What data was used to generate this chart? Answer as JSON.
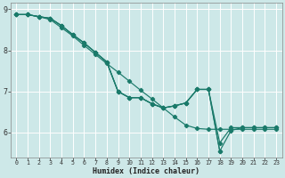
{
  "xlabel": "Humidex (Indice chaleur)",
  "bg_color": "#cde8e8",
  "line_color": "#1a7a6a",
  "xlim": [
    -0.5,
    23.5
  ],
  "ylim": [
    5.4,
    9.15
  ],
  "yticks": [
    6,
    7,
    8,
    9
  ],
  "xticks": [
    0,
    1,
    2,
    3,
    4,
    5,
    6,
    7,
    8,
    9,
    10,
    11,
    12,
    13,
    14,
    15,
    16,
    17,
    18,
    19,
    20,
    21,
    22,
    23
  ],
  "series1_x": [
    0,
    1,
    2,
    3,
    4,
    5,
    6,
    7,
    8,
    9,
    10,
    11,
    12,
    13,
    14,
    15,
    16,
    17,
    18,
    19,
    20,
    21,
    22,
    23
  ],
  "series1_y": [
    8.87,
    8.87,
    8.82,
    8.75,
    8.55,
    8.35,
    8.12,
    7.9,
    7.68,
    7.47,
    7.25,
    7.03,
    6.82,
    6.6,
    6.38,
    6.18,
    6.1,
    6.08,
    6.08,
    6.08,
    6.08,
    6.08,
    6.08,
    6.08
  ],
  "series2_x": [
    0,
    1,
    2,
    3,
    3,
    4,
    5,
    6,
    7,
    8,
    9,
    10,
    11,
    12,
    13,
    14,
    15,
    16,
    17,
    18,
    19,
    20,
    21,
    22,
    23
  ],
  "series2_y": [
    8.87,
    8.87,
    8.82,
    8.78,
    8.78,
    8.6,
    8.38,
    8.18,
    7.95,
    7.72,
    7.0,
    6.85,
    6.85,
    6.7,
    6.6,
    6.65,
    6.72,
    7.05,
    7.05,
    5.55,
    6.05,
    6.12,
    6.12,
    6.12,
    6.12
  ],
  "series3_x": [
    0,
    1,
    2,
    3,
    4,
    5,
    6,
    7,
    8,
    9,
    10,
    11,
    12,
    13,
    14,
    15,
    16,
    17,
    18
  ],
  "series3_y": [
    8.87,
    8.87,
    8.82,
    8.78,
    8.6,
    8.38,
    8.18,
    7.95,
    7.72,
    7.0,
    6.85,
    6.85,
    6.7,
    6.6,
    6.65,
    6.72,
    7.05,
    7.05,
    5.55
  ],
  "series4_x": [
    0,
    1,
    2,
    3,
    4,
    5,
    6,
    7,
    8,
    9,
    10,
    11,
    12,
    13,
    14,
    15,
    16,
    17,
    18,
    19,
    20,
    21,
    22,
    23
  ],
  "series4_y": [
    8.87,
    8.87,
    8.82,
    8.78,
    8.6,
    8.38,
    8.18,
    7.95,
    7.72,
    7.0,
    6.85,
    6.85,
    6.7,
    6.6,
    6.65,
    6.72,
    7.05,
    7.05,
    5.75,
    6.12,
    6.12,
    6.12,
    6.12,
    6.12
  ]
}
